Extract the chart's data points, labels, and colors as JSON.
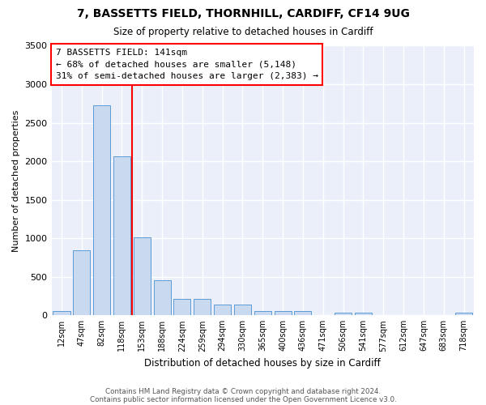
{
  "title1": "7, BASSETTS FIELD, THORNHILL, CARDIFF, CF14 9UG",
  "title2": "Size of property relative to detached houses in Cardiff",
  "xlabel": "Distribution of detached houses by size in Cardiff",
  "ylabel": "Number of detached properties",
  "categories": [
    "12sqm",
    "47sqm",
    "82sqm",
    "118sqm",
    "153sqm",
    "188sqm",
    "224sqm",
    "259sqm",
    "294sqm",
    "330sqm",
    "365sqm",
    "400sqm",
    "436sqm",
    "471sqm",
    "506sqm",
    "541sqm",
    "577sqm",
    "612sqm",
    "647sqm",
    "683sqm",
    "718sqm"
  ],
  "bar_values": [
    55,
    840,
    2730,
    2060,
    1015,
    455,
    215,
    215,
    145,
    145,
    55,
    55,
    55,
    0,
    35,
    35,
    0,
    0,
    0,
    0,
    35
  ],
  "bar_color": "#c9d9f0",
  "bar_edge_color": "#5b9bd5",
  "vline_color": "red",
  "vline_x": 3.5,
  "annotation_text": "7 BASSETTS FIELD: 141sqm\n← 68% of detached houses are smaller (5,148)\n31% of semi-detached houses are larger (2,383) →",
  "ylim": [
    0,
    3500
  ],
  "yticks": [
    0,
    500,
    1000,
    1500,
    2000,
    2500,
    3000,
    3500
  ],
  "background_color": "#eaeff9",
  "grid_color": "white",
  "footnote1": "Contains HM Land Registry data © Crown copyright and database right 2024.",
  "footnote2": "Contains public sector information licensed under the Open Government Licence v3.0."
}
